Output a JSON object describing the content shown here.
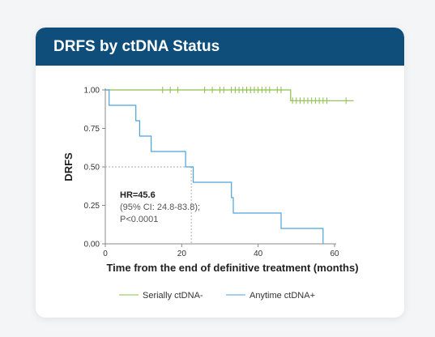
{
  "card": {
    "title": "DRFS by ctDNA Status"
  },
  "chart_data": {
    "type": "line",
    "subtype": "kaplan-meier",
    "title": "DRFS by ctDNA Status",
    "xlabel": "Time from the end of definitive treatment (months)",
    "ylabel": "DRFS",
    "xlim": [
      0,
      60
    ],
    "ylim": [
      0,
      1
    ],
    "xticks": [
      "0",
      "20",
      "40",
      "60"
    ],
    "yticks": [
      "0.00",
      "0.25",
      "0.50",
      "0.75",
      "1.00"
    ],
    "grid": false,
    "legend_position": "bottom",
    "series": [
      {
        "name": "Serially ctDNA-",
        "color": "#8cc04a",
        "steps": [
          [
            0,
            1.0
          ],
          [
            48.5,
            1.0
          ],
          [
            48.5,
            0.93
          ],
          [
            65,
            0.93
          ]
        ],
        "censor_times": [
          15,
          17,
          19,
          26,
          28,
          30,
          31,
          33,
          34,
          35,
          36,
          37,
          38,
          39,
          40,
          41,
          42,
          43,
          45,
          46,
          49,
          50,
          51,
          52,
          53,
          54,
          55,
          56,
          57,
          58,
          63
        ]
      },
      {
        "name": "Anytime ctDNA+",
        "color": "#4aa3dc",
        "steps": [
          [
            0,
            1.0
          ],
          [
            1,
            1.0
          ],
          [
            1,
            0.9
          ],
          [
            8,
            0.9
          ],
          [
            8,
            0.8
          ],
          [
            9,
            0.8
          ],
          [
            9,
            0.7
          ],
          [
            12,
            0.7
          ],
          [
            12,
            0.6
          ],
          [
            21,
            0.6
          ],
          [
            21,
            0.5
          ],
          [
            23,
            0.5
          ],
          [
            23,
            0.4
          ],
          [
            33,
            0.4
          ],
          [
            33,
            0.3
          ],
          [
            33.5,
            0.3
          ],
          [
            33.5,
            0.2
          ],
          [
            46,
            0.2
          ],
          [
            46,
            0.1
          ],
          [
            57,
            0.1
          ],
          [
            57,
            0.0
          ]
        ],
        "censor_times": []
      }
    ],
    "median_line": {
      "x": 22.5,
      "y": 0.5
    },
    "annotation": {
      "line1": "HR=45.6",
      "line2": "(95% CI: 24.8-83.8);",
      "line3": "P<0.0001"
    }
  }
}
